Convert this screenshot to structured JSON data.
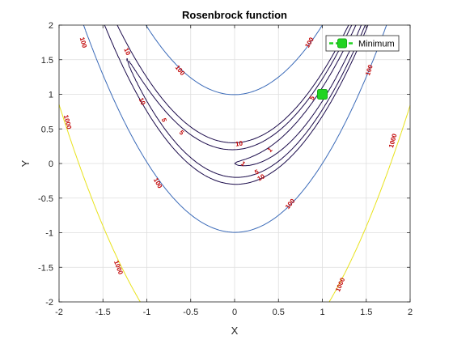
{
  "chart_data": {
    "type": "contour",
    "title": "Rosenbrock function",
    "xlabel": "X",
    "ylabel": "Y",
    "xlim": [
      -2,
      2
    ],
    "ylim": [
      -2,
      2
    ],
    "xticks": [
      -2,
      -1.5,
      -1,
      -0.5,
      0,
      0.5,
      1,
      1.5,
      2
    ],
    "yticks": [
      -2,
      -1.5,
      -1,
      -0.5,
      0,
      0.5,
      1,
      1.5,
      2
    ],
    "grid": true,
    "legend_position": "top-right",
    "contour_levels": [
      1,
      5,
      10,
      100,
      1000
    ],
    "level_colors": {
      "1": "#1a0a4a",
      "5": "#1a0a4a",
      "10": "#1a0a4a",
      "100": "#3a6ab8",
      "1000": "#e8e21a"
    },
    "label_color": "#c00000",
    "contour_labels": [
      {
        "text": "1",
        "x": 0.1,
        "y": 0.0
      },
      {
        "text": "1",
        "x": 0.4,
        "y": 0.2
      },
      {
        "text": "5",
        "x": -0.8,
        "y": 0.63
      },
      {
        "text": "5",
        "x": -0.6,
        "y": 0.45
      },
      {
        "text": "5",
        "x": 0.25,
        "y": -0.12
      },
      {
        "text": "5",
        "x": 0.88,
        "y": 0.95
      },
      {
        "text": "10",
        "x": -1.22,
        "y": 1.62
      },
      {
        "text": "10",
        "x": -1.05,
        "y": 0.9
      },
      {
        "text": "10",
        "x": 0.05,
        "y": 0.29
      },
      {
        "text": "10",
        "x": 0.3,
        "y": -0.2
      },
      {
        "text": "100",
        "x": -1.72,
        "y": 1.75
      },
      {
        "text": "100",
        "x": -0.62,
        "y": 1.35
      },
      {
        "text": "100",
        "x": 0.85,
        "y": 1.75
      },
      {
        "text": "100",
        "x": 1.53,
        "y": 1.35
      },
      {
        "text": "100",
        "x": -0.87,
        "y": -0.28
      },
      {
        "text": "100",
        "x": 0.63,
        "y": -0.58
      },
      {
        "text": "1000",
        "x": -1.9,
        "y": 0.6
      },
      {
        "text": "1000",
        "x": -1.32,
        "y": -1.5
      },
      {
        "text": "1000",
        "x": 1.8,
        "y": 0.33
      },
      {
        "text": "1000",
        "x": 1.2,
        "y": -1.75
      }
    ],
    "series": [
      {
        "name": "Minimum",
        "type": "scatter",
        "x": [
          1
        ],
        "y": [
          1
        ],
        "color": "#22d422"
      }
    ]
  }
}
